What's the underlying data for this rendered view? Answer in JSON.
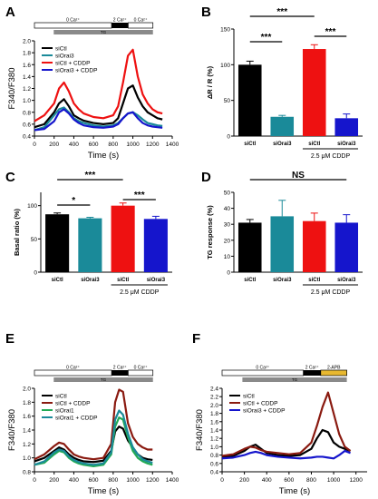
{
  "colors": {
    "black": "#000000",
    "teal": "#1a8a99",
    "red": "#ee1111",
    "blue": "#1515cc",
    "green": "#22aa55",
    "darkred": "#8a1a10",
    "gray": "#888888"
  },
  "chart_data": [
    {
      "panel": "A",
      "type": "line",
      "protocol": {
        "ca0": "0 Ca²⁺",
        "ca2": "2 Ca²⁺",
        "ca0b": "0 Ca²⁺",
        "drug": "TG"
      },
      "xlabel": "Time (s)",
      "ylabel": "F340/F380",
      "xlim": [
        0,
        1400
      ],
      "xticks": [
        0,
        200,
        400,
        600,
        800,
        1000,
        1200,
        1400
      ],
      "ylim": [
        0.4,
        2.0
      ],
      "yticks": [
        0.4,
        0.6,
        0.8,
        1.0,
        1.2,
        1.4,
        1.6,
        1.8,
        2.0
      ],
      "x": [
        0,
        100,
        200,
        250,
        300,
        350,
        400,
        450,
        500,
        600,
        700,
        800,
        850,
        900,
        950,
        1000,
        1050,
        1100,
        1150,
        1200,
        1250,
        1300
      ],
      "series": [
        {
          "name": "siCtl",
          "color": "#000000",
          "values": [
            0.55,
            0.6,
            0.8,
            0.95,
            1.02,
            0.9,
            0.75,
            0.7,
            0.66,
            0.62,
            0.6,
            0.62,
            0.7,
            0.95,
            1.2,
            1.25,
            1.05,
            0.9,
            0.8,
            0.75,
            0.7,
            0.68
          ]
        },
        {
          "name": "siOrai3",
          "color": "#1a8a99",
          "values": [
            0.5,
            0.55,
            0.75,
            0.85,
            0.88,
            0.8,
            0.7,
            0.65,
            0.62,
            0.58,
            0.56,
            0.58,
            0.62,
            0.7,
            0.78,
            0.8,
            0.75,
            0.68,
            0.62,
            0.6,
            0.58,
            0.57
          ]
        },
        {
          "name": "siCtl + CDDP",
          "color": "#ee1111",
          "values": [
            0.65,
            0.75,
            0.95,
            1.2,
            1.3,
            1.15,
            0.95,
            0.85,
            0.78,
            0.72,
            0.7,
            0.75,
            0.9,
            1.3,
            1.75,
            1.85,
            1.4,
            1.1,
            0.95,
            0.85,
            0.8,
            0.78
          ]
        },
        {
          "name": "siOrai3 + CDDP",
          "color": "#1515cc",
          "values": [
            0.5,
            0.52,
            0.65,
            0.8,
            0.85,
            0.78,
            0.68,
            0.62,
            0.58,
            0.55,
            0.54,
            0.56,
            0.6,
            0.7,
            0.78,
            0.8,
            0.7,
            0.62,
            0.58,
            0.56,
            0.55,
            0.54
          ]
        }
      ]
    },
    {
      "panel": "B",
      "type": "bar",
      "ylabel": "ΔR / R (%)",
      "ylim": [
        0,
        150
      ],
      "yticks": [
        0,
        50,
        100,
        150
      ],
      "categories": [
        "siCtl",
        "siOrai3",
        "siCtl",
        "siOrai3"
      ],
      "values": [
        100,
        27,
        122,
        25
      ],
      "errors": [
        5,
        2,
        6,
        6
      ],
      "colors": [
        "#000000",
        "#1a8a99",
        "#ee1111",
        "#1515cc"
      ],
      "treatment": "2.5 μM CDDP",
      "significance": [
        {
          "from": 0,
          "to": 1,
          "label": "***"
        },
        {
          "from": 2,
          "to": 3,
          "label": "***"
        },
        {
          "from": 0,
          "to": 2,
          "label": "***"
        }
      ]
    },
    {
      "panel": "C",
      "type": "bar",
      "ylabel": "Basal ratio (%)",
      "ylim": [
        0,
        120
      ],
      "yticks": [
        0,
        50,
        100
      ],
      "categories": [
        "siCtl",
        "siOrai3",
        "siCtl",
        "siOrai3"
      ],
      "values": [
        87,
        81,
        100,
        80
      ],
      "errors": [
        2,
        1.5,
        4,
        4
      ],
      "colors": [
        "#000000",
        "#1a8a99",
        "#ee1111",
        "#1515cc"
      ],
      "treatment": "2.5 μM CDDP",
      "significance": [
        {
          "from": 0,
          "to": 1,
          "label": "*"
        },
        {
          "from": 2,
          "to": 3,
          "label": "***"
        },
        {
          "from": 0,
          "to": 2,
          "label": "***"
        }
      ]
    },
    {
      "panel": "D",
      "type": "bar",
      "ylabel": "TG response (%)",
      "ylim": [
        0,
        50
      ],
      "yticks": [
        0,
        10,
        20,
        30,
        40,
        50
      ],
      "categories": [
        "siCtl",
        "siOrai3",
        "siCtl",
        "siOrai3"
      ],
      "values": [
        31,
        35,
        32,
        31
      ],
      "errors": [
        2,
        10,
        5,
        5
      ],
      "colors": [
        "#000000",
        "#1a8a99",
        "#ee1111",
        "#1515cc"
      ],
      "treatment": "2.5 μM CDDP",
      "significance": [
        {
          "from": 0,
          "to": 3,
          "label": "NS"
        }
      ]
    },
    {
      "panel": "E",
      "type": "line",
      "protocol": {
        "ca0": "0 Ca²⁺",
        "ca2": "2 Ca²⁺",
        "ca0b": "0 Ca²⁺",
        "drug": "TG"
      },
      "xlabel": "Time (s)",
      "ylabel": "F340/F380",
      "xlim": [
        0,
        1400
      ],
      "xticks": [
        0,
        200,
        400,
        600,
        800,
        1000,
        1200,
        1400
      ],
      "ylim": [
        0.8,
        2.0
      ],
      "yticks": [
        0.8,
        1.0,
        1.2,
        1.4,
        1.6,
        1.8,
        2.0
      ],
      "x": [
        0,
        100,
        200,
        250,
        300,
        350,
        400,
        450,
        500,
        600,
        700,
        780,
        820,
        860,
        900,
        950,
        1000,
        1050,
        1100,
        1150,
        1200
      ],
      "series": [
        {
          "name": "siCtl",
          "color": "#000000",
          "values": [
            0.95,
            1.0,
            1.1,
            1.15,
            1.12,
            1.05,
            1.0,
            0.97,
            0.95,
            0.94,
            0.96,
            1.1,
            1.38,
            1.45,
            1.42,
            1.25,
            1.15,
            1.05,
            1.0,
            0.98,
            0.97
          ]
        },
        {
          "name": "siCtl + CDDP",
          "color": "#8a1a10",
          "values": [
            0.98,
            1.05,
            1.17,
            1.22,
            1.2,
            1.12,
            1.05,
            1.02,
            1.0,
            0.98,
            1.0,
            1.2,
            1.8,
            1.98,
            1.95,
            1.5,
            1.3,
            1.2,
            1.15,
            1.12,
            1.12
          ]
        },
        {
          "name": "siOrai1",
          "color": "#22aa55",
          "values": [
            0.9,
            0.93,
            1.05,
            1.1,
            1.08,
            1.0,
            0.95,
            0.92,
            0.9,
            0.88,
            0.9,
            1.05,
            1.45,
            1.58,
            1.55,
            1.3,
            1.1,
            1.0,
            0.95,
            0.92,
            0.9
          ]
        },
        {
          "name": "siOrai1 + CDDP",
          "color": "#1a8a99",
          "values": [
            0.9,
            0.95,
            1.08,
            1.12,
            1.1,
            1.02,
            0.97,
            0.94,
            0.92,
            0.9,
            0.92,
            1.08,
            1.55,
            1.68,
            1.62,
            1.35,
            1.15,
            1.05,
            0.98,
            0.95,
            0.93
          ]
        }
      ]
    },
    {
      "panel": "F",
      "type": "line",
      "protocol": {
        "ca0": "0 Ca²⁺",
        "ca2": "2 Ca²⁺",
        "ca0b": "2-APB",
        "drug": "TG"
      },
      "xlabel": "Time (s)",
      "ylabel": "F340/F380",
      "xlim": [
        0,
        1300
      ],
      "xticks": [
        0,
        200,
        400,
        600,
        800,
        1000,
        1200
      ],
      "ylim": [
        0.4,
        2.4
      ],
      "yticks": [
        0.4,
        0.6,
        0.8,
        1.0,
        1.2,
        1.4,
        1.6,
        1.8,
        2.0,
        2.2,
        2.4
      ],
      "x": [
        0,
        100,
        200,
        250,
        300,
        350,
        400,
        500,
        600,
        700,
        800,
        850,
        900,
        950,
        1000,
        1050,
        1100,
        1150
      ],
      "series": [
        {
          "name": "siCtl",
          "color": "#000000",
          "values": [
            0.75,
            0.78,
            0.9,
            1.0,
            1.05,
            0.95,
            0.85,
            0.8,
            0.78,
            0.8,
            0.95,
            1.2,
            1.4,
            1.35,
            1.1,
            1.0,
            0.95,
            0.9
          ]
        },
        {
          "name": "siCtl + CDDP",
          "color": "#8a1a10",
          "values": [
            0.78,
            0.82,
            0.95,
            1.0,
            0.98,
            0.92,
            0.88,
            0.85,
            0.82,
            0.85,
            1.1,
            1.5,
            1.95,
            2.3,
            1.8,
            1.3,
            1.0,
            0.9
          ]
        },
        {
          "name": "siOrai3 + CDDP",
          "color": "#1515cc",
          "values": [
            0.72,
            0.74,
            0.8,
            0.85,
            0.88,
            0.85,
            0.8,
            0.76,
            0.74,
            0.72,
            0.74,
            0.76,
            0.76,
            0.74,
            0.72,
            0.8,
            0.9,
            0.85
          ]
        }
      ]
    }
  ]
}
